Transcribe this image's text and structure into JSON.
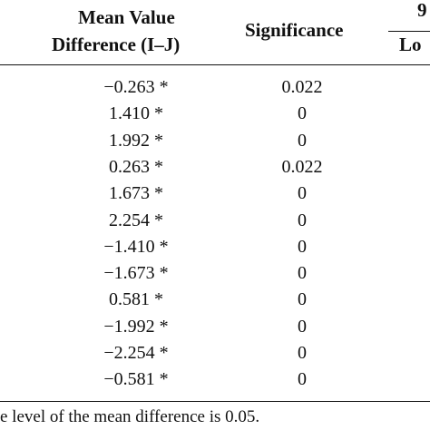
{
  "table": {
    "headers": {
      "diff_line1": "Mean Value",
      "diff_line2": "Difference (I–J)",
      "significance": "Significance",
      "ci_partial": "9",
      "lower_partial": "Lo"
    },
    "rows": [
      {
        "diff": "−0.263 *",
        "sig": "0.022"
      },
      {
        "diff": "1.410 *",
        "sig": "0"
      },
      {
        "diff": "1.992 *",
        "sig": "0"
      },
      {
        "diff": "0.263 *",
        "sig": "0.022"
      },
      {
        "diff": "1.673 *",
        "sig": "0"
      },
      {
        "diff": "2.254 *",
        "sig": "0"
      },
      {
        "diff": "−1.410 *",
        "sig": "0"
      },
      {
        "diff": "−1.673 *",
        "sig": "0"
      },
      {
        "diff": "0.581 *",
        "sig": "0"
      },
      {
        "diff": "−1.992 *",
        "sig": "0"
      },
      {
        "diff": "−2.254 *",
        "sig": "0"
      },
      {
        "diff": "−0.581 *",
        "sig": "0"
      }
    ]
  },
  "footnote": "e level of the mean difference is 0.05."
}
